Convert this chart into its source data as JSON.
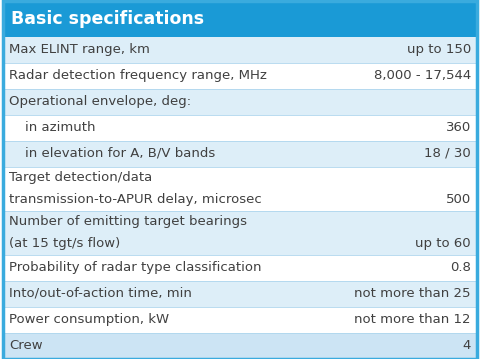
{
  "title": "Basic specifications",
  "title_bg": "#1a9ad6",
  "title_color": "#ffffff",
  "header_fontsize": 12.5,
  "row_fontsize": 9.5,
  "border_color": "#3aabde",
  "border_lw": 2.5,
  "divider_color": "#aed6ee",
  "divider_lw": 0.6,
  "text_color": "#404040",
  "rows": [
    {
      "label": "Max ELINT range, km",
      "value": "up to 150",
      "indent": 0,
      "bg": "#ddeef8",
      "multiline": false
    },
    {
      "label": "Radar detection frequency range, MHz",
      "value": "8,000 - 17,544",
      "indent": 0,
      "bg": "#ffffff",
      "multiline": false
    },
    {
      "label": "Operational envelope, deg:",
      "value": "",
      "indent": 0,
      "bg": "#ddeef8",
      "multiline": false
    },
    {
      "label": "in azimuth",
      "value": "360",
      "indent": 1,
      "bg": "#ffffff",
      "multiline": false
    },
    {
      "label": "in elevation for A, B/V bands",
      "value": "18 / 30",
      "indent": 1,
      "bg": "#ddeef8",
      "multiline": false
    },
    {
      "label": "Target detection/data\ntransmission-to-APUR delay, microsec",
      "value": "500",
      "indent": 0,
      "bg": "#ffffff",
      "multiline": true
    },
    {
      "label": "Number of emitting target bearings\n(at 15 tgt/s flow)",
      "value": "up to 60",
      "indent": 0,
      "bg": "#ddeef8",
      "multiline": true
    },
    {
      "label": "Probability of radar type classification",
      "value": "0.8",
      "indent": 0,
      "bg": "#ffffff",
      "multiline": false
    },
    {
      "label": "Into/out-of-action time, min",
      "value": "not more than 25",
      "indent": 0,
      "bg": "#ddeef8",
      "multiline": false
    },
    {
      "label": "Power consumption, kW",
      "value": "not more than 12",
      "indent": 0,
      "bg": "#ffffff",
      "multiline": false
    },
    {
      "label": "Crew",
      "value": "4",
      "indent": 0,
      "bg": "#cce4f4",
      "multiline": false
    }
  ]
}
